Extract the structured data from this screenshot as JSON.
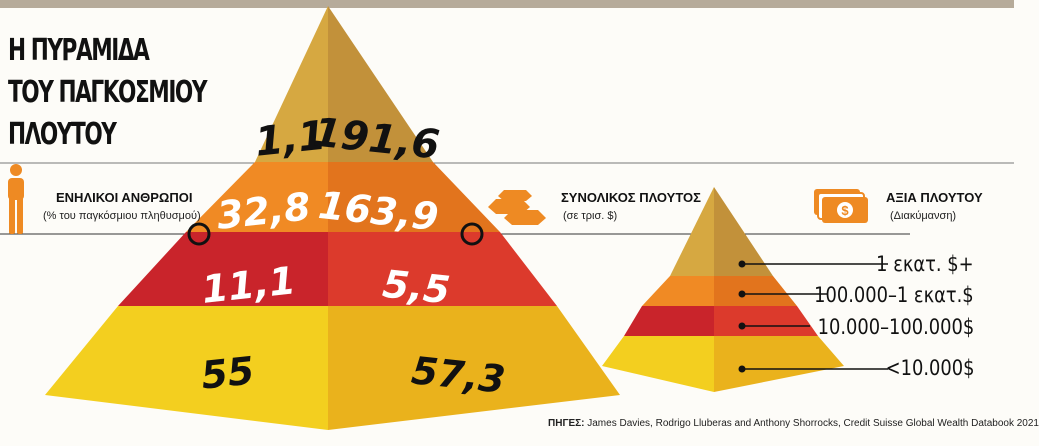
{
  "title": {
    "line1": "Η ΠΥΡΑΜΙΔΑ",
    "line2": "ΤΟΥ ΠΑΓΚΟΣΜΙΟΥ",
    "line3": "ΠΛΟΥΤΟΥ"
  },
  "legend": {
    "adults": {
      "title": "ΕΝΗΛΙΚΟΙ ΑΝΘΡΩΠΟΙ",
      "subtitle": "(% του παγκόσμιου πληθυσμού)",
      "icon": "person-icon"
    },
    "wealth": {
      "title": "ΣΥΝΟΛΙΚΟΣ ΠΛΟΥΤΟΣ",
      "subtitle": "(σε τρισ. $)",
      "icon": "gold-bars-icon"
    },
    "value": {
      "title": "ΑΞΙΑ ΠΛΟΥΤΟΥ",
      "subtitle": "(Διακύμανση)",
      "icon": "money-bills-icon"
    }
  },
  "tiers": [
    {
      "adults": "1,1",
      "wealth": "191,6",
      "range": "1 εκατ. $+",
      "left_color": "#d6a841",
      "right_color": "#c2913a"
    },
    {
      "adults": "32,8",
      "wealth": "163,9",
      "range": "100.000–1 εκατ.$",
      "left_color": "#f08a24",
      "right_color": "#e2741d"
    },
    {
      "adults": "11,1",
      "wealth": "5,5",
      "range": "10.000–100.000$",
      "left_color": "#c9242b",
      "right_color": "#dc3a2c"
    },
    {
      "adults": "55",
      "wealth": "57,3",
      "range": "<10.000$",
      "left_color": "#f3cf1f",
      "right_color": "#eab21c"
    }
  ],
  "sources": {
    "label": "ΠΗΓΕΣ:",
    "text": "James Davies, Rodrigo Lluberas and Anthony Shorrocks, Credit Suisse Global Wealth Databook 2021"
  }
}
